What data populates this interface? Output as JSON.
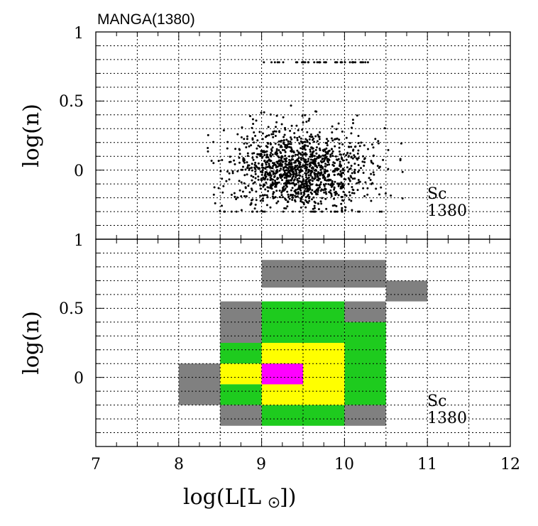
{
  "title": "MANGA(1380)",
  "xlabel": "log(L[L",
  "xlabel_end": "])",
  "colors": {
    "gray": "#808080",
    "green": "#1ecb1e",
    "yellow": "#ffff00",
    "magenta": "#ff00ff"
  },
  "chart_data": [
    {
      "type": "scatter",
      "name": "top-panel",
      "ylabel": "log(n)",
      "xlim": [
        7,
        12
      ],
      "ylim": [
        -0.5,
        1
      ],
      "yticks": [
        {
          "v": 1,
          "label": "1"
        },
        {
          "v": 0.5,
          "label": "0.5"
        },
        {
          "v": 0,
          "label": "0"
        }
      ],
      "annotation": [
        "Sc",
        "1380"
      ],
      "n_points": 1380,
      "cloud": {
        "x_mean": 9.45,
        "x_std": 0.42,
        "x_range": [
          8.35,
          10.7
        ],
        "y_mean": 0.0,
        "y_std": 0.15,
        "y_range": [
          -0.3,
          0.65
        ],
        "top_row_y": 0.78,
        "top_row_x": [
          [
            9.0,
            10.3
          ]
        ]
      },
      "grid": true
    },
    {
      "type": "heatmap",
      "name": "bottom-panel",
      "ylabel": "log(n)",
      "xlim": [
        7,
        12
      ],
      "ylim": [
        -0.5,
        1
      ],
      "yticks": [
        {
          "v": 1,
          "label": "1"
        },
        {
          "v": 0.5,
          "label": "0.5"
        },
        {
          "v": 0,
          "label": "0"
        }
      ],
      "xticks": [
        {
          "v": 7,
          "label": "7"
        },
        {
          "v": 8,
          "label": "8"
        },
        {
          "v": 9,
          "label": "9"
        },
        {
          "v": 10,
          "label": "10"
        },
        {
          "v": 11,
          "label": "11"
        },
        {
          "v": 12,
          "label": "12"
        }
      ],
      "annotation": [
        "Sc",
        "1380"
      ],
      "cells": [
        {
          "x0": 9.0,
          "x1": 10.5,
          "y0": 0.65,
          "y1": 0.85,
          "level": "gray"
        },
        {
          "x0": 10.5,
          "x1": 11.0,
          "y0": 0.55,
          "y1": 0.7,
          "level": "gray"
        },
        {
          "x0": 8.5,
          "x1": 9.0,
          "y0": 0.25,
          "y1": 0.55,
          "level": "gray"
        },
        {
          "x0": 10.0,
          "x1": 10.5,
          "y0": 0.4,
          "y1": 0.55,
          "level": "gray"
        },
        {
          "x0": 9.0,
          "x1": 10.0,
          "y0": 0.25,
          "y1": 0.55,
          "level": "green"
        },
        {
          "x0": 10.0,
          "x1": 10.5,
          "y0": -0.2,
          "y1": 0.4,
          "level": "green"
        },
        {
          "x0": 8.5,
          "x1": 9.0,
          "y0": 0.1,
          "y1": 0.25,
          "level": "green"
        },
        {
          "x0": 9.0,
          "x1": 10.0,
          "y0": -0.2,
          "y1": 0.25,
          "level": "yellow"
        },
        {
          "x0": 8.5,
          "x1": 9.0,
          "y0": -0.05,
          "y1": 0.1,
          "level": "yellow"
        },
        {
          "x0": 8.5,
          "x1": 9.0,
          "y0": -0.2,
          "y1": -0.05,
          "level": "green"
        },
        {
          "x0": 9.0,
          "x1": 9.5,
          "y0": -0.05,
          "y1": 0.1,
          "level": "magenta"
        },
        {
          "x0": 8.0,
          "x1": 8.5,
          "y0": -0.2,
          "y1": 0.1,
          "level": "gray"
        },
        {
          "x0": 8.5,
          "x1": 9.0,
          "y0": -0.35,
          "y1": -0.2,
          "level": "gray"
        },
        {
          "x0": 9.0,
          "x1": 10.0,
          "y0": -0.35,
          "y1": -0.2,
          "level": "green"
        },
        {
          "x0": 10.0,
          "x1": 10.5,
          "y0": -0.35,
          "y1": -0.2,
          "level": "gray"
        }
      ],
      "grid": true
    }
  ]
}
